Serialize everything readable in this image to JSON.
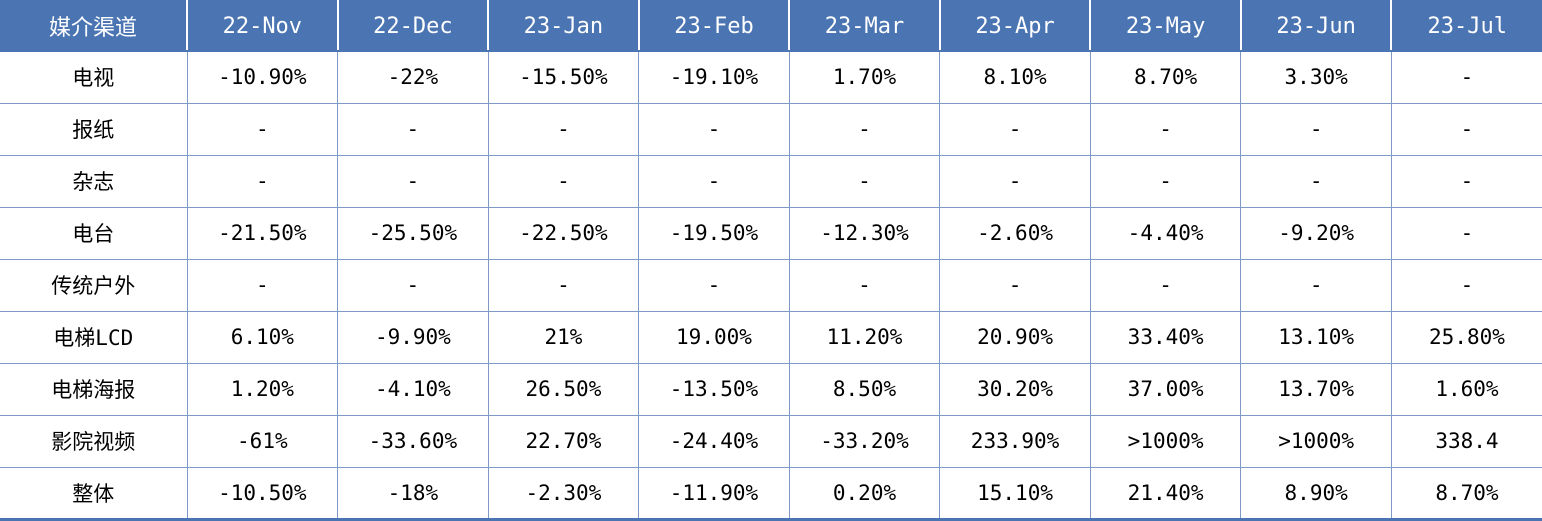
{
  "table": {
    "header": {
      "label": "媒介渠道",
      "months": [
        "22-Nov",
        "22-Dec",
        "23-Jan",
        "23-Feb",
        "23-Mar",
        "23-Apr",
        "23-May",
        "23-Jun",
        "23-Jul"
      ]
    },
    "rows": [
      {
        "channel": "电视",
        "values": [
          "-10.90%",
          "-22%",
          "-15.50%",
          "-19.10%",
          "1.70%",
          "8.10%",
          "8.70%",
          "3.30%",
          "-"
        ]
      },
      {
        "channel": "报纸",
        "values": [
          "-",
          "-",
          "-",
          "-",
          "-",
          "-",
          "-",
          "-",
          "-"
        ]
      },
      {
        "channel": "杂志",
        "values": [
          "-",
          "-",
          "-",
          "-",
          "-",
          "-",
          "-",
          "-",
          "-"
        ]
      },
      {
        "channel": "电台",
        "values": [
          "-21.50%",
          "-25.50%",
          "-22.50%",
          "-19.50%",
          "-12.30%",
          "-2.60%",
          "-4.40%",
          "-9.20%",
          "-"
        ]
      },
      {
        "channel": "传统户外",
        "values": [
          "-",
          "-",
          "-",
          "-",
          "-",
          "-",
          "-",
          "-",
          "-"
        ]
      },
      {
        "channel": "电梯LCD",
        "values": [
          "6.10%",
          "-9.90%",
          "21%",
          "19.00%",
          "11.20%",
          "20.90%",
          "33.40%",
          "13.10%",
          "25.80%"
        ]
      },
      {
        "channel": "电梯海报",
        "values": [
          "1.20%",
          "-4.10%",
          "26.50%",
          "-13.50%",
          "8.50%",
          "30.20%",
          "37.00%",
          "13.70%",
          "1.60%"
        ]
      },
      {
        "channel": "影院视频",
        "values": [
          "-61%",
          "-33.60%",
          "22.70%",
          "-24.40%",
          "-33.20%",
          "233.90%",
          ">1000%",
          ">1000%",
          "338.4"
        ]
      },
      {
        "channel": "整体",
        "values": [
          "-10.50%",
          "-18%",
          "-2.30%",
          "-11.90%",
          "0.20%",
          "15.10%",
          "21.40%",
          "8.90%",
          "8.70%"
        ]
      }
    ]
  },
  "colors": {
    "header_bg": "#4a74b2",
    "header_text": "#ffffff",
    "grid_line": "#7f99c6",
    "body_text": "#000000"
  }
}
